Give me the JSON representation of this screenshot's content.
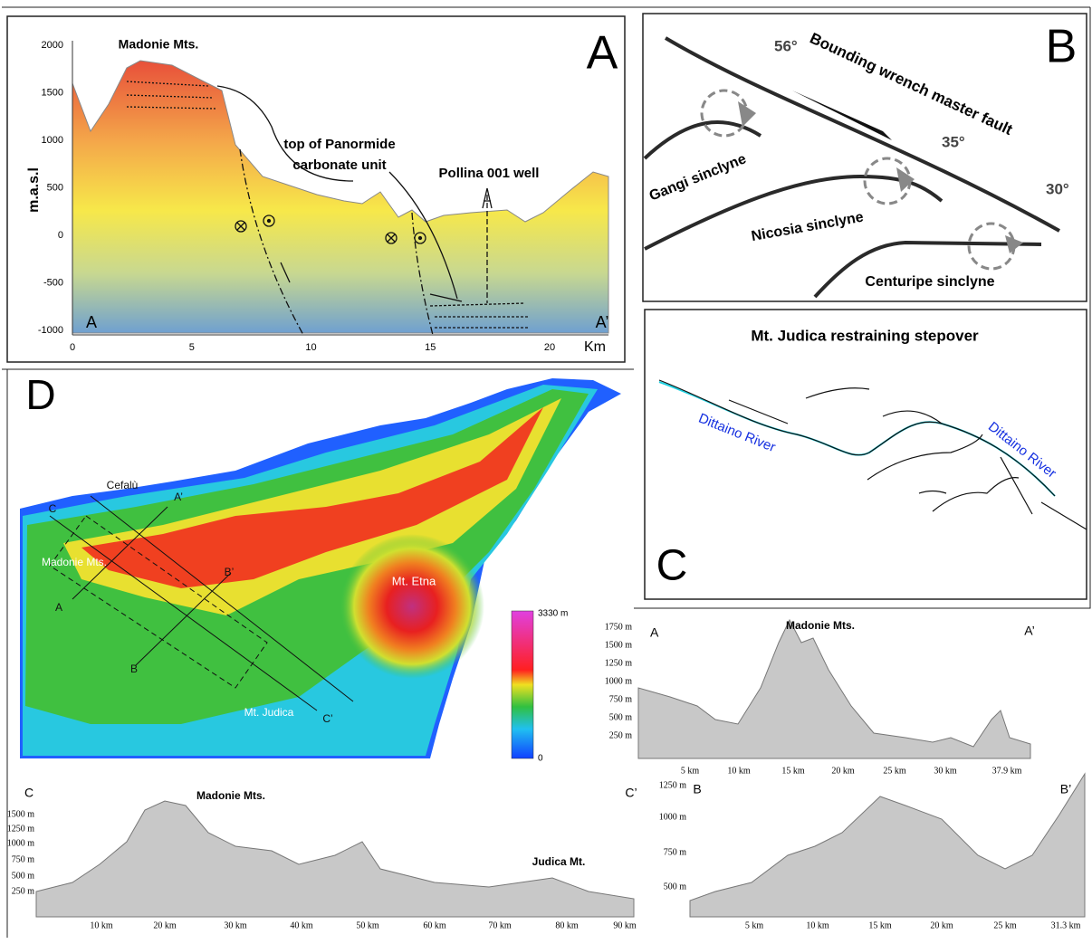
{
  "panel_a": {
    "letter": "A",
    "y_axis_label": "m.a.s.l",
    "x_axis_label": "Km",
    "yticks": [
      "2000",
      "1500",
      "1000",
      "500",
      "0",
      "-500",
      "-1000"
    ],
    "xticks": [
      "0",
      "5",
      "10",
      "15",
      "20"
    ],
    "labels": {
      "peak": "Madonie Mts.",
      "unit_line1": "top of Panormide",
      "unit_line2": "carbonate unit",
      "well": "Pollina 001 well",
      "start": "A",
      "end": "A’"
    }
  },
  "panel_b": {
    "letter": "B",
    "fault": "Bounding wrench master fault",
    "angles": [
      "56°",
      "35°",
      "30°"
    ],
    "synclines": [
      "Gangi sinclyne",
      "Nicosia sinclyne",
      "Centuripe sinclyne"
    ]
  },
  "panel_c": {
    "letter": "C",
    "title": "Mt. Judica restraining stepover",
    "rivers": [
      "Dittaino River",
      "Dittaino River"
    ]
  },
  "panel_d": {
    "letter": "D",
    "places": [
      "Cefalù",
      "C",
      "A’",
      "Madonie Mts.",
      "B’",
      "A",
      "B",
      "Mt. Judica",
      "C’",
      "Mt. Etna"
    ],
    "colorbar": {
      "max": "3330 m",
      "min": "0"
    }
  },
  "profile_aa": {
    "start": "A",
    "end": "A’",
    "peak": "Madonie Mts.",
    "yticks": [
      "1750 m",
      "1500 m",
      "1250 m",
      "1000 m",
      "750 m",
      "500 m",
      "250 m"
    ],
    "xticks": [
      "5 km",
      "10 km",
      "15 km",
      "20 km",
      "25 km",
      "30 km",
      "37.9 km"
    ]
  },
  "profile_cc": {
    "start": "C",
    "end": "C’",
    "peak": "Madonie Mts.",
    "peak2": "Judica Mt.",
    "yticks": [
      "1500 m",
      "1250 m",
      "1000 m",
      "750 m",
      "500 m",
      "250 m"
    ],
    "xticks": [
      "10 km",
      "20 km",
      "30 km",
      "40 km",
      "50 km",
      "60 km",
      "70 km",
      "80 km",
      "90 km"
    ]
  },
  "profile_bb": {
    "start": "B",
    "end": "B’",
    "yticks": [
      "1250 m",
      "1000 m",
      "750 m",
      "500 m"
    ],
    "xticks": [
      "5 km",
      "10 km",
      "15 km",
      "20 km",
      "25 km",
      "31.3 km"
    ]
  }
}
